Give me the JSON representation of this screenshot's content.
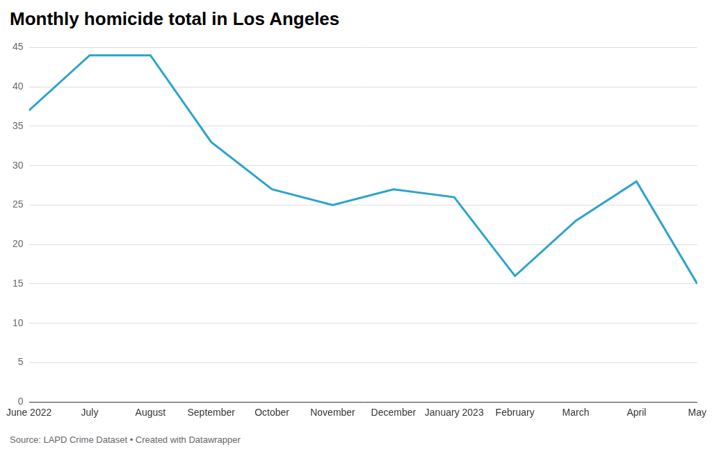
{
  "chart_data": {
    "type": "line",
    "title": "Monthly homicide total in Los Angeles",
    "source": "Source: LAPD Crime Dataset • Created with Datawrapper",
    "categories": [
      "June 2022",
      "July",
      "August",
      "September",
      "October",
      "November",
      "December",
      "January 2023",
      "February",
      "March",
      "April",
      "May"
    ],
    "values": [
      37,
      44,
      44,
      33,
      27,
      25,
      27,
      26,
      16,
      23,
      28,
      15
    ],
    "color": "#2ba3cc",
    "ylim": [
      0,
      45
    ],
    "yticks": [
      0,
      5,
      10,
      15,
      20,
      25,
      30,
      35,
      40,
      45
    ],
    "grid": true
  }
}
